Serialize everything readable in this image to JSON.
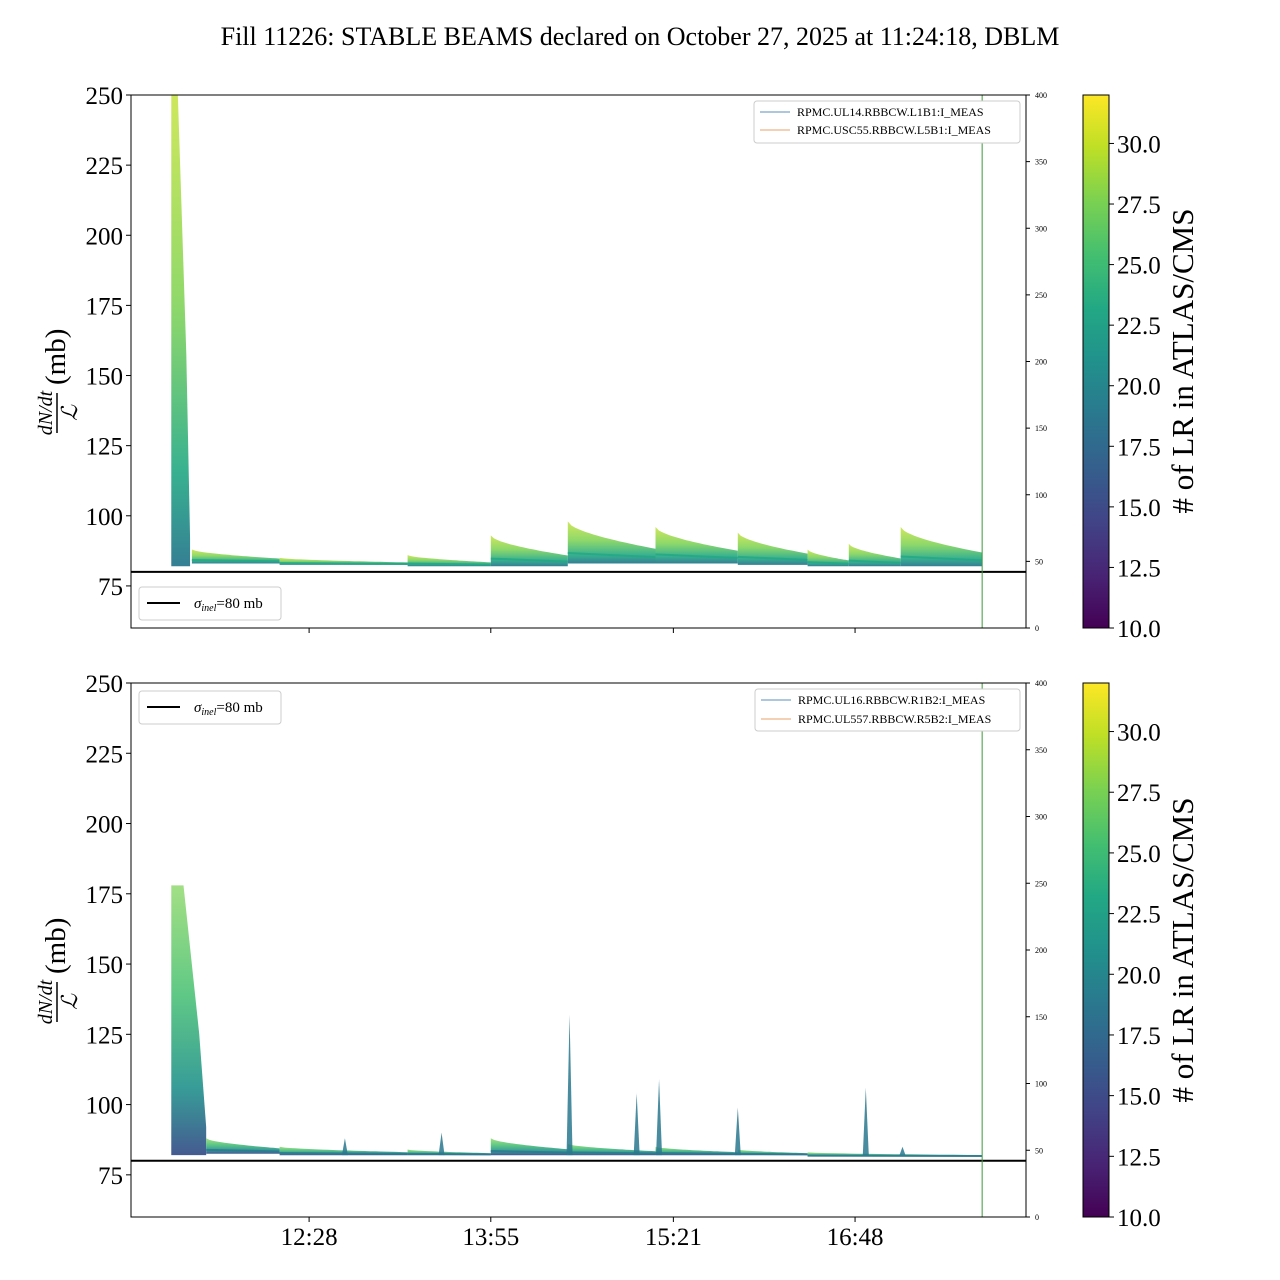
{
  "title": "Fill 11226: STABLE BEAMS declared on October 27, 2025 at 11:24:18, DBLM",
  "colors": {
    "viridis": [
      "#440154",
      "#482475",
      "#414487",
      "#355f8d",
      "#2a788e",
      "#21918c",
      "#22a884",
      "#44bf70",
      "#7ad151",
      "#bddf26",
      "#fde725"
    ],
    "legend_line_1": "#5b8fb9",
    "legend_line_2": "#e8a36a",
    "reference_line": "#000000",
    "end_marker": "#3a9a3a"
  },
  "chart_data": [
    {
      "type": "line",
      "ylabel": "dN/dt / ℒ (mb)",
      "ylabel_parts": {
        "numerator": "dN/dt",
        "denominator": "ℒ",
        "unit": "(mb)"
      },
      "ylim": [
        60,
        250
      ],
      "yticks": [
        75,
        100,
        125,
        150,
        175,
        200,
        225,
        250
      ],
      "y2lim": [
        0,
        400
      ],
      "y2ticks": [
        0,
        50,
        100,
        150,
        200,
        250,
        300,
        350,
        400
      ],
      "xlim": [
        0,
        100
      ],
      "xtick_positions": [
        19.9,
        40.2,
        60.6,
        80.9
      ],
      "xtick_labels": [],
      "legend_channels": [
        "RPMC.UL14.RBBCW.L1B1:I_MEAS",
        "RPMC.USC55.RBBCW.L5B1:I_MEAS"
      ],
      "legend_reference": {
        "symbol": "σ",
        "subscript": "inel",
        "text": "=80 mb"
      },
      "legend_reference_position": "bottom-left",
      "legend_channels_position": "top-right",
      "reference_value": 80,
      "end_marker_x": 95.1,
      "spike": {
        "start": 4.5,
        "end": 6.6,
        "peak": 250,
        "baseline": 82
      },
      "segments": [
        {
          "start": 6.8,
          "end": 16.6,
          "low": 83,
          "high": 88
        },
        {
          "start": 16.6,
          "end": 30.9,
          "low": 82.5,
          "high": 85
        },
        {
          "start": 30.9,
          "end": 40.2,
          "low": 82,
          "high": 86
        },
        {
          "start": 40.2,
          "end": 48.8,
          "low": 82,
          "high": 93
        },
        {
          "start": 48.8,
          "end": 58.6,
          "low": 83,
          "high": 98
        },
        {
          "start": 58.6,
          "end": 67.8,
          "low": 83,
          "high": 96
        },
        {
          "start": 67.8,
          "end": 75.6,
          "low": 82.5,
          "high": 94
        },
        {
          "start": 75.6,
          "end": 80.2,
          "low": 82,
          "high": 88
        },
        {
          "start": 80.2,
          "end": 86.0,
          "low": 82,
          "high": 90
        },
        {
          "start": 86.0,
          "end": 95.1,
          "low": 82,
          "high": 96
        }
      ],
      "spikes": []
    },
    {
      "type": "line",
      "ylabel": "dN/dt / ℒ (mb)",
      "ylabel_parts": {
        "numerator": "dN/dt",
        "denominator": "ℒ",
        "unit": "(mb)"
      },
      "ylim": [
        60,
        250
      ],
      "yticks": [
        75,
        100,
        125,
        150,
        175,
        200,
        225,
        250
      ],
      "y2lim": [
        0,
        400
      ],
      "y2ticks": [
        0,
        50,
        100,
        150,
        200,
        250,
        300,
        350,
        400
      ],
      "xlim": [
        0,
        100
      ],
      "xtick_positions": [
        19.9,
        40.2,
        60.6,
        80.9
      ],
      "xtick_labels": [
        "12:28",
        "13:55",
        "15:21",
        "16:48"
      ],
      "legend_channels": [
        "RPMC.UL16.RBBCW.R1B2:I_MEAS",
        "RPMC.UL557.RBBCW.R5B2:I_MEAS"
      ],
      "legend_reference": {
        "symbol": "σ",
        "subscript": "inel",
        "text": "=80 mb"
      },
      "legend_reference_position": "top-left",
      "legend_channels_position": "top-right",
      "reference_value": 80,
      "end_marker_x": 95.1,
      "spike": {
        "start": 4.5,
        "end": 8.4,
        "peak": 178,
        "baseline": 82
      },
      "segments": [
        {
          "start": 8.4,
          "end": 16.6,
          "low": 82.5,
          "high": 88
        },
        {
          "start": 16.6,
          "end": 30.9,
          "low": 82,
          "high": 85
        },
        {
          "start": 30.9,
          "end": 40.2,
          "low": 82,
          "high": 84
        },
        {
          "start": 40.2,
          "end": 48.8,
          "low": 82,
          "high": 88
        },
        {
          "start": 48.8,
          "end": 58.6,
          "low": 82,
          "high": 86
        },
        {
          "start": 58.6,
          "end": 67.8,
          "low": 82,
          "high": 85
        },
        {
          "start": 67.8,
          "end": 75.6,
          "low": 82,
          "high": 84
        },
        {
          "start": 75.6,
          "end": 95.1,
          "low": 81.5,
          "high": 83
        }
      ],
      "spikes": [
        {
          "x": 49.0,
          "peak": 132
        },
        {
          "x": 56.5,
          "peak": 104
        },
        {
          "x": 59.0,
          "peak": 109
        },
        {
          "x": 67.8,
          "peak": 99
        },
        {
          "x": 82.1,
          "peak": 106
        },
        {
          "x": 34.7,
          "peak": 90
        },
        {
          "x": 23.9,
          "peak": 88
        },
        {
          "x": 86.2,
          "peak": 85
        }
      ]
    }
  ],
  "colorbar": {
    "label": "# of LR in ATLAS/CMS",
    "vmin": 10.0,
    "vmax": 32.0,
    "ticks": [
      "10.0",
      "12.5",
      "15.0",
      "17.5",
      "20.0",
      "22.5",
      "25.0",
      "27.5",
      "30.0"
    ]
  }
}
